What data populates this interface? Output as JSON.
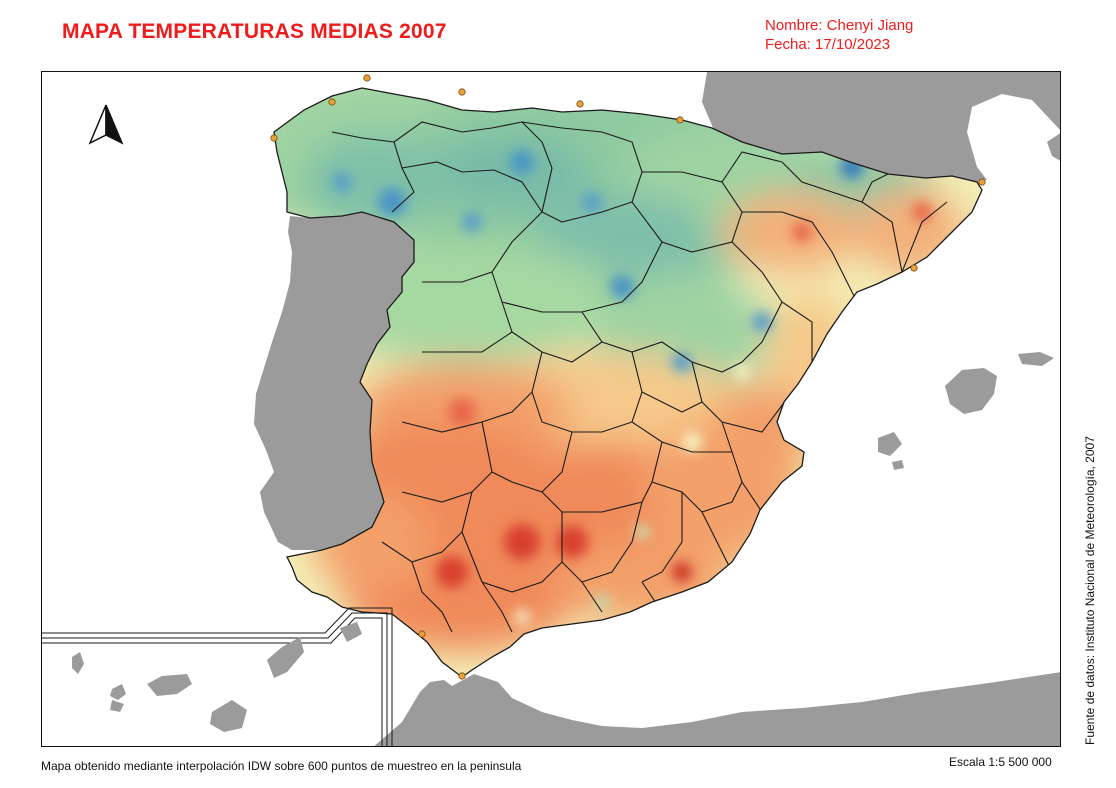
{
  "header": {
    "title": "MAPA TEMPERATURAS MEDIAS 2007",
    "author_line": "Nombre: Chenyi Jiang",
    "date_line": "Fecha: 17/10/2023"
  },
  "map": {
    "north_arrow_icon": "north-arrow-icon",
    "colors": {
      "land_other": "#9b9b9b",
      "sea": "#ffffff",
      "cold": "#3f8fc4",
      "mild": "#9fd3a3",
      "neutral": "#f3f0b8",
      "warm": "#f3a06a",
      "hot": "#e0412e",
      "station": "#e9a13a",
      "borders": "#1a1a1a"
    }
  },
  "footer": {
    "method_note": "Mapa obtenido mediante interpolación IDW sobre 600 puntos de muestreo en la peninsula",
    "scale_label": "Escala 1:5 500 000",
    "source_label": "Fuente de datos: Instituto Nacional de Meteorología, 2007"
  }
}
